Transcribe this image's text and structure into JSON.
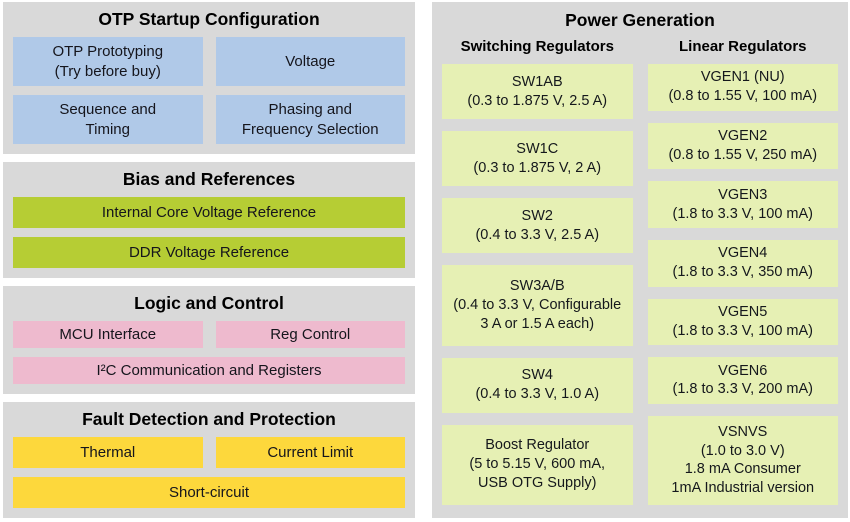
{
  "colors": {
    "panel_bg": "#d9d9d9",
    "otp_box": "#b0c9e8",
    "bias_box": "#b6cd34",
    "logic_box": "#eebace",
    "fault_box": "#fdd83c",
    "power_box": "#e6f0b4"
  },
  "left_sections": [
    {
      "title": "OTP Startup Configuration",
      "color_key": "otp_box",
      "rows": [
        [
          "OTP Prototyping\n(Try before buy)",
          "Voltage"
        ],
        [
          "Sequence and\nTiming",
          "Phasing and\nFrequency Selection"
        ]
      ]
    },
    {
      "title": "Bias and References",
      "color_key": "bias_box",
      "rows": [
        [
          "Internal Core Voltage Reference"
        ],
        [
          "DDR Voltage Reference"
        ]
      ]
    },
    {
      "title": "Logic and Control",
      "color_key": "logic_box",
      "rows": [
        [
          "MCU Interface",
          "Reg Control"
        ],
        [
          "I²C Communication and Registers"
        ]
      ]
    },
    {
      "title": "Fault Detection and Protection",
      "color_key": "fault_box",
      "rows": [
        [
          "Thermal",
          "Current Limit"
        ],
        [
          "Short-circuit"
        ]
      ]
    }
  ],
  "power_generation": {
    "title": "Power Generation",
    "columns": [
      {
        "header": "Switching Regulators",
        "boxes": [
          "SW1AB\n(0.3 to 1.875 V, 2.5 A)",
          "SW1C\n(0.3 to 1.875 V, 2 A)",
          "SW2\n(0.4 to 3.3 V, 2.5 A)",
          "SW3A/B\n(0.4 to 3.3 V, Configurable\n3 A or 1.5 A each)",
          "SW4\n(0.4 to 3.3 V, 1.0 A)",
          "Boost Regulator\n(5 to 5.15 V, 600 mA,\nUSB OTG Supply)"
        ]
      },
      {
        "header": "Linear Regulators",
        "boxes": [
          "VGEN1 (NU)\n(0.8 to 1.55 V, 100 mA)",
          "VGEN2\n(0.8 to 1.55 V, 250 mA)",
          "VGEN3\n(1.8 to 3.3 V, 100 mA)",
          "VGEN4\n(1.8 to 3.3 V, 350 mA)",
          "VGEN5\n(1.8 to 3.3 V, 100 mA)",
          "VGEN6\n(1.8 to 3.3 V, 200 mA)",
          "VSNVS\n(1.0 to 3.0 V)\n1.8 mA Consumer\n1mA Industrial version"
        ]
      }
    ]
  }
}
